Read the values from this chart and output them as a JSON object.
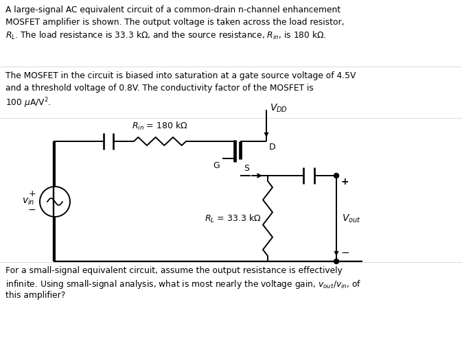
{
  "background_color": "#ffffff",
  "line_color": "#000000",
  "fig_width": 6.73,
  "fig_height": 5.16,
  "para1_lines": [
    "A large-signal AC equivalent circuit of a common-drain n-channel enhancement",
    "MOSFET amplifier is shown. The output voltage is taken across the load resistor,",
    "$R_L$. The load resistance is 33.3 k$\\Omega$, and the source resistance, $R_{in}$, is 180 k$\\Omega$."
  ],
  "para2_lines": [
    "The MOSFET in the circuit is biased into saturation at a gate source voltage of 4.5V",
    "and a threshold voltage of 0.8V. The conductivity factor of the MOSFET is",
    "100 $\\mu$A/V$^2$."
  ],
  "para3_lines": [
    "For a small-signal equivalent circuit, assume the output resistance is effectively",
    "infinite. Using small-signal analysis, what is most nearly the voltage gain, $v_{out}/v_{in}$, of",
    "this amplifier?"
  ],
  "label_Rin": "$R_{in}$ = 180 k$\\Omega$",
  "label_RL": "$R_L$ = 33.3 k$\\Omega$",
  "label_VDD": "$V_{DD}$",
  "label_G": "G",
  "label_S": "S",
  "label_D": "D",
  "label_vin": "$v_{in}$",
  "label_vout": "$V_{out}$",
  "label_vout_plus": "+",
  "label_vout_minus": "−",
  "label_vin_plus": "+",
  "label_vin_minus": "−"
}
